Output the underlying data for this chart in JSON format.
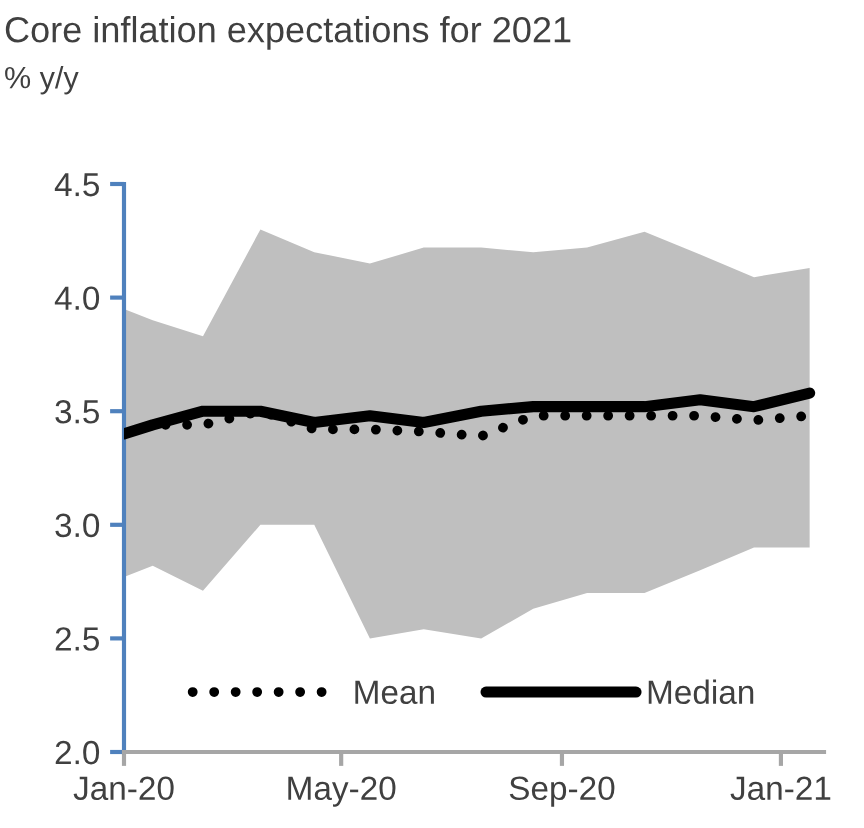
{
  "chart_data": {
    "type": "line",
    "title": "Core inflation expectations for 2021",
    "subtitle": "% y/y",
    "x": [
      "2020-01-01",
      "2020-01-17",
      "2020-02-14",
      "2020-03-17",
      "2020-04-16",
      "2020-05-17",
      "2020-06-16",
      "2020-07-18",
      "2020-08-16",
      "2020-09-15",
      "2020-10-17",
      "2020-11-17",
      "2020-12-17",
      "2021-01-17"
    ],
    "series": [
      {
        "name": "Mean",
        "color": "#000000",
        "line_style": "dotted",
        "values": [
          3.4,
          3.44,
          3.44,
          3.5,
          3.42,
          3.42,
          3.41,
          3.39,
          3.48,
          3.48,
          3.48,
          3.48,
          3.46,
          3.48
        ]
      },
      {
        "name": "Median",
        "color": "#000000",
        "line_style": "solid",
        "values": [
          3.4,
          3.44,
          3.5,
          3.5,
          3.45,
          3.48,
          3.45,
          3.5,
          3.52,
          3.52,
          3.52,
          3.55,
          3.52,
          3.58
        ],
        "lower": [
          2.77,
          2.82,
          2.71,
          3.0,
          3.0,
          2.5,
          2.54,
          2.5,
          2.63,
          2.7,
          2.7,
          2.8,
          2.9,
          2.9
        ],
        "upper": [
          3.95,
          3.9,
          3.83,
          4.3,
          4.2,
          4.15,
          4.22,
          4.22,
          4.2,
          4.22,
          4.29,
          4.19,
          4.09,
          4.13
        ]
      }
    ],
    "xlim": [
      "2020-01-01",
      "2021-01-25"
    ],
    "xticks": [
      {
        "value": "2020-01-01",
        "label": "Jan-20"
      },
      {
        "value": "2020-05-01",
        "label": "May-20"
      },
      {
        "value": "2020-09-01",
        "label": "Sep-20"
      },
      {
        "value": "2021-01-01",
        "label": "Jan-21"
      }
    ],
    "ylim": [
      2.0,
      4.5
    ],
    "yticks": [
      {
        "value": 2.0,
        "label": "2.0"
      },
      {
        "value": 2.5,
        "label": "2.5"
      },
      {
        "value": 3.0,
        "label": "3.0"
      },
      {
        "value": 3.5,
        "label": "3.5"
      },
      {
        "value": 4.0,
        "label": "4.0"
      },
      {
        "value": 4.5,
        "label": "4.5"
      }
    ],
    "grid": false,
    "legend": "bottom",
    "marker": "none"
  }
}
